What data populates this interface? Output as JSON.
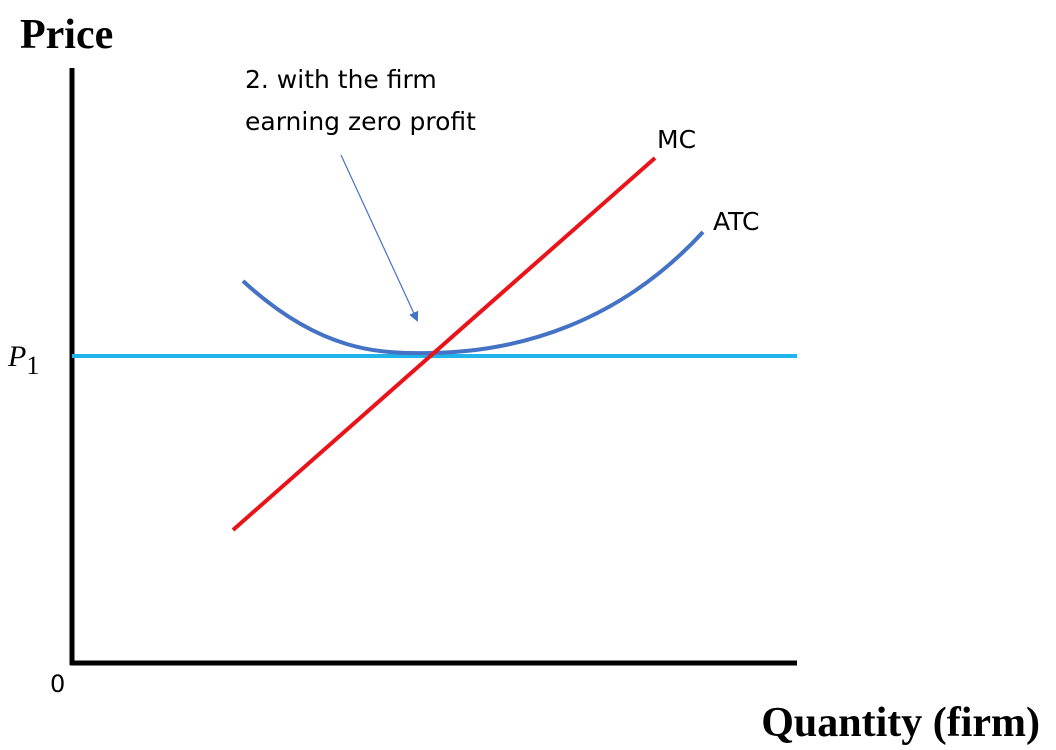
{
  "axes": {
    "y_label": "Price",
    "x_label": "Quantity (firm)",
    "origin": "0"
  },
  "price_level": {
    "label": "P",
    "subscript": "1"
  },
  "annotation": {
    "lines": [
      "2. with the firm",
      "earning zero profit"
    ]
  },
  "curves": {
    "mc": "MC",
    "atc": "ATC"
  }
}
